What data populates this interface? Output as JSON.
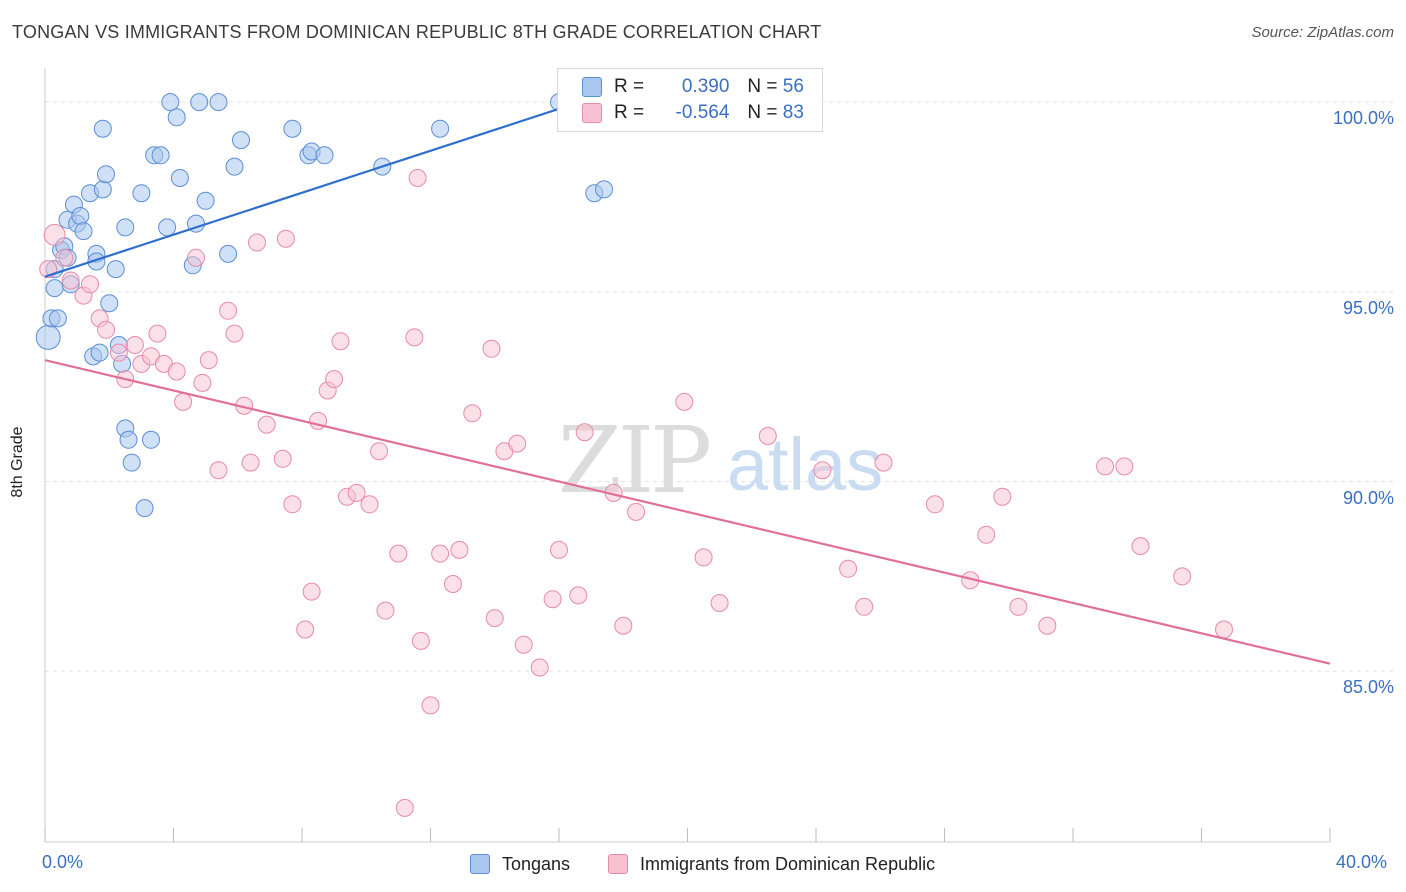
{
  "header": {
    "title": "TONGAN VS IMMIGRANTS FROM DOMINICAN REPUBLIC 8TH GRADE CORRELATION CHART",
    "source": "Source: ZipAtlas.com"
  },
  "watermark": {
    "zip": "ZIP",
    "atlas": "atlas"
  },
  "stats": {
    "r_label": "R =",
    "n_label": "N =",
    "rows": [
      {
        "r": "0.390",
        "n": "56"
      },
      {
        "r": "-0.564",
        "n": "83"
      }
    ]
  },
  "colors": {
    "blue_fill": "#a9c6ef",
    "blue_stroke": "#5b8fd6",
    "blue_line": "#2f6fcc",
    "pink_fill": "#f7c1d2",
    "pink_stroke": "#e88aa8",
    "pink_line": "#e0709a",
    "grid": "#e3e3e3",
    "tick_text": "#3a6fc4"
  },
  "chart_data": {
    "type": "scatter",
    "title": "TONGAN VS IMMIGRANTS FROM DOMINICAN REPUBLIC 8TH GRADE CORRELATION CHART",
    "xlabel": "",
    "ylabel": "8th Grade",
    "xlim": [
      0,
      40
    ],
    "ylim": [
      80.5,
      100.9
    ],
    "x_tick_labels": [
      "0.0%",
      "40.0%"
    ],
    "y_ticks": [
      {
        "value": 100,
        "label": "100.0%"
      },
      {
        "value": 95,
        "label": "95.0%"
      },
      {
        "value": 90,
        "label": "90.0%"
      },
      {
        "value": 85,
        "label": "85.0%"
      }
    ],
    "grid": true,
    "legend_position": "bottom",
    "series": [
      {
        "name": "Tongans",
        "r": 0.39,
        "n": 56,
        "trend": {
          "x": [
            0.0,
            17.0
          ],
          "y": [
            95.4,
            100.1
          ]
        },
        "points": [
          [
            0.1,
            93.8
          ],
          [
            0.2,
            94.3
          ],
          [
            0.3,
            95.6
          ],
          [
            0.3,
            95.1
          ],
          [
            0.4,
            94.3
          ],
          [
            0.5,
            96.1
          ],
          [
            0.6,
            96.2
          ],
          [
            0.7,
            95.9
          ],
          [
            0.7,
            96.9
          ],
          [
            0.8,
            95.2
          ],
          [
            0.9,
            97.3
          ],
          [
            1.0,
            96.8
          ],
          [
            1.1,
            97.0
          ],
          [
            1.2,
            96.6
          ],
          [
            1.4,
            97.6
          ],
          [
            1.5,
            93.3
          ],
          [
            1.6,
            96.0
          ],
          [
            1.6,
            95.8
          ],
          [
            1.7,
            93.4
          ],
          [
            1.8,
            97.7
          ],
          [
            1.8,
            99.3
          ],
          [
            1.9,
            98.1
          ],
          [
            2.0,
            94.7
          ],
          [
            2.2,
            95.6
          ],
          [
            2.3,
            93.6
          ],
          [
            2.4,
            93.1
          ],
          [
            2.5,
            96.7
          ],
          [
            2.5,
            91.4
          ],
          [
            2.6,
            91.1
          ],
          [
            2.7,
            90.5
          ],
          [
            3.0,
            97.6
          ],
          [
            3.1,
            89.3
          ],
          [
            3.3,
            91.1
          ],
          [
            3.4,
            98.6
          ],
          [
            3.6,
            98.6
          ],
          [
            3.8,
            96.7
          ],
          [
            3.9,
            100.0
          ],
          [
            4.1,
            99.6
          ],
          [
            4.2,
            98.0
          ],
          [
            4.6,
            95.7
          ],
          [
            4.7,
            96.8
          ],
          [
            4.8,
            100.0
          ],
          [
            5.0,
            97.4
          ],
          [
            5.4,
            100.0
          ],
          [
            5.7,
            96.0
          ],
          [
            5.9,
            98.3
          ],
          [
            6.1,
            99.0
          ],
          [
            7.7,
            99.3
          ],
          [
            8.2,
            98.6
          ],
          [
            8.3,
            98.7
          ],
          [
            8.7,
            98.6
          ],
          [
            10.5,
            98.3
          ],
          [
            12.3,
            99.3
          ],
          [
            16.0,
            100.0
          ],
          [
            17.1,
            97.6
          ],
          [
            17.4,
            97.7
          ]
        ]
      },
      {
        "name": "Immigrants from Dominican Republic",
        "r": -0.564,
        "n": 83,
        "trend": {
          "x": [
            0.0,
            40.0
          ],
          "y": [
            93.2,
            85.2
          ]
        },
        "points": [
          [
            0.1,
            95.6
          ],
          [
            0.3,
            96.5
          ],
          [
            0.6,
            95.9
          ],
          [
            0.8,
            95.3
          ],
          [
            1.2,
            94.9
          ],
          [
            1.4,
            95.2
          ],
          [
            1.7,
            94.3
          ],
          [
            1.9,
            94.0
          ],
          [
            2.3,
            93.4
          ],
          [
            2.5,
            92.7
          ],
          [
            2.8,
            93.6
          ],
          [
            3.0,
            93.1
          ],
          [
            3.3,
            93.3
          ],
          [
            3.5,
            93.9
          ],
          [
            3.7,
            93.1
          ],
          [
            4.1,
            92.9
          ],
          [
            4.3,
            92.1
          ],
          [
            4.7,
            95.9
          ],
          [
            4.9,
            92.6
          ],
          [
            5.1,
            93.2
          ],
          [
            5.4,
            90.3
          ],
          [
            5.7,
            94.5
          ],
          [
            5.9,
            93.9
          ],
          [
            6.2,
            92.0
          ],
          [
            6.4,
            90.5
          ],
          [
            6.6,
            96.3
          ],
          [
            6.9,
            91.5
          ],
          [
            7.4,
            90.6
          ],
          [
            7.5,
            96.4
          ],
          [
            7.7,
            89.4
          ],
          [
            8.1,
            86.1
          ],
          [
            8.3,
            87.1
          ],
          [
            8.5,
            91.6
          ],
          [
            8.8,
            92.4
          ],
          [
            9.0,
            92.7
          ],
          [
            9.2,
            93.7
          ],
          [
            9.4,
            89.6
          ],
          [
            9.7,
            89.7
          ],
          [
            10.1,
            89.4
          ],
          [
            10.4,
            90.8
          ],
          [
            10.6,
            86.6
          ],
          [
            11.0,
            88.1
          ],
          [
            11.2,
            81.4
          ],
          [
            11.5,
            93.8
          ],
          [
            11.6,
            98.0
          ],
          [
            11.7,
            85.8
          ],
          [
            12.0,
            84.1
          ],
          [
            12.3,
            88.1
          ],
          [
            12.7,
            87.3
          ],
          [
            12.9,
            88.2
          ],
          [
            13.3,
            91.8
          ],
          [
            13.9,
            93.5
          ],
          [
            14.0,
            86.4
          ],
          [
            14.3,
            90.8
          ],
          [
            14.7,
            91.0
          ],
          [
            14.9,
            85.7
          ],
          [
            15.4,
            85.1
          ],
          [
            15.8,
            86.9
          ],
          [
            16.0,
            88.2
          ],
          [
            16.6,
            87.0
          ],
          [
            16.8,
            91.3
          ],
          [
            17.7,
            89.7
          ],
          [
            18.0,
            86.2
          ],
          [
            18.4,
            89.2
          ],
          [
            19.9,
            92.1
          ],
          [
            20.5,
            88.0
          ],
          [
            21.0,
            86.8
          ],
          [
            22.5,
            91.2
          ],
          [
            24.2,
            90.3
          ],
          [
            25.0,
            87.7
          ],
          [
            25.5,
            86.7
          ],
          [
            26.1,
            90.5
          ],
          [
            27.7,
            89.4
          ],
          [
            28.8,
            87.4
          ],
          [
            29.3,
            88.6
          ],
          [
            29.8,
            89.6
          ],
          [
            30.3,
            86.7
          ],
          [
            31.2,
            86.2
          ],
          [
            33.0,
            90.4
          ],
          [
            33.6,
            90.4
          ],
          [
            34.1,
            88.3
          ],
          [
            35.4,
            87.5
          ],
          [
            36.7,
            86.1
          ]
        ]
      }
    ]
  }
}
